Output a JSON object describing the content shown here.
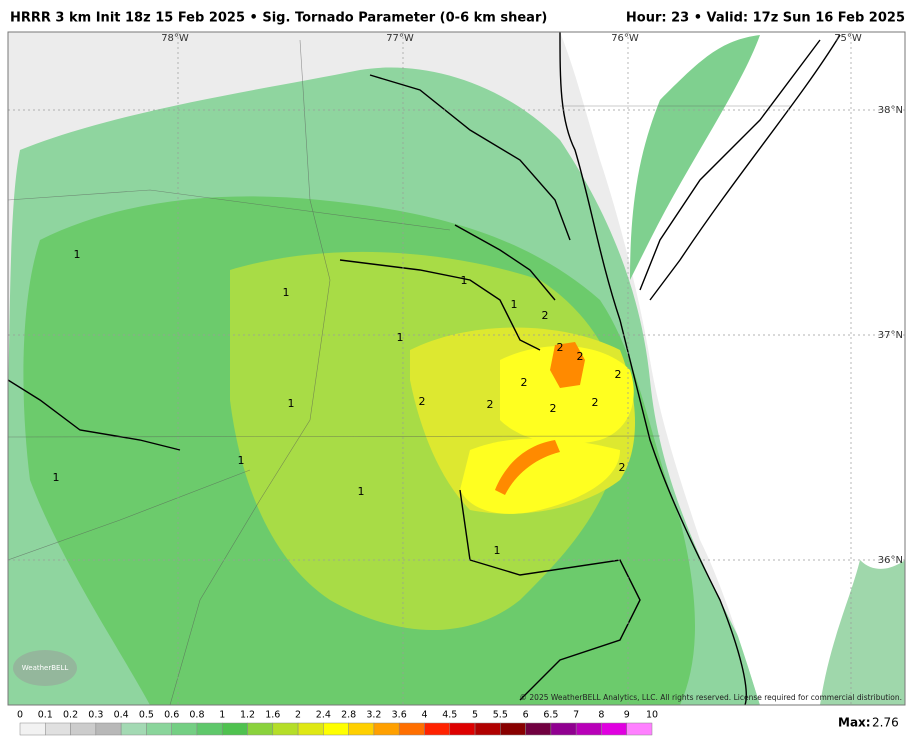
{
  "header": {
    "title": "HRRR 3 km Init 18z 15 Feb 2025 • Sig. Tornado Parameter (0-6 km shear)",
    "valid": "Hour: 23 • Valid: 17z Sun 16 Feb 2025"
  },
  "map": {
    "longitude_labels": [
      "78°W",
      "77°W",
      "76°W",
      "75°W"
    ],
    "latitude_labels": [
      "38°N",
      "37°N",
      "36°N"
    ],
    "contour_labels": [
      1,
      1,
      1,
      1,
      1,
      1,
      1,
      1,
      1,
      1,
      2,
      2,
      2,
      2,
      2,
      2,
      2,
      2,
      2,
      2
    ],
    "logo": "WeatherBELL",
    "copyright": "© 2025 WeatherBELL Analytics, LLC. All rights reserved. License required for commercial distribution."
  },
  "colorbar": {
    "ticks": [
      0,
      0.1,
      0.2,
      0.3,
      0.4,
      0.5,
      0.6,
      0.8,
      1,
      1.2,
      1.6,
      2,
      2.4,
      2.8,
      3.2,
      3.6,
      4,
      4.5,
      5,
      5.5,
      6,
      6.5,
      7,
      8,
      9,
      10
    ],
    "colors": [
      "#f2f2f2",
      "#e0e0e0",
      "#cccccc",
      "#b8b8b8",
      "#a3d9b3",
      "#8ad59b",
      "#74cf83",
      "#5fc86b",
      "#4fc24f",
      "#8ad23c",
      "#b5de28",
      "#dfe814",
      "#ffff00",
      "#ffd000",
      "#ffa000",
      "#ff6f00",
      "#ff2200",
      "#dd0000",
      "#b00000",
      "#880000",
      "#700040",
      "#900090",
      "#b800b8",
      "#e000e0",
      "#ff80ff"
    ],
    "max_label": "Max:",
    "max_value": 2.76
  }
}
